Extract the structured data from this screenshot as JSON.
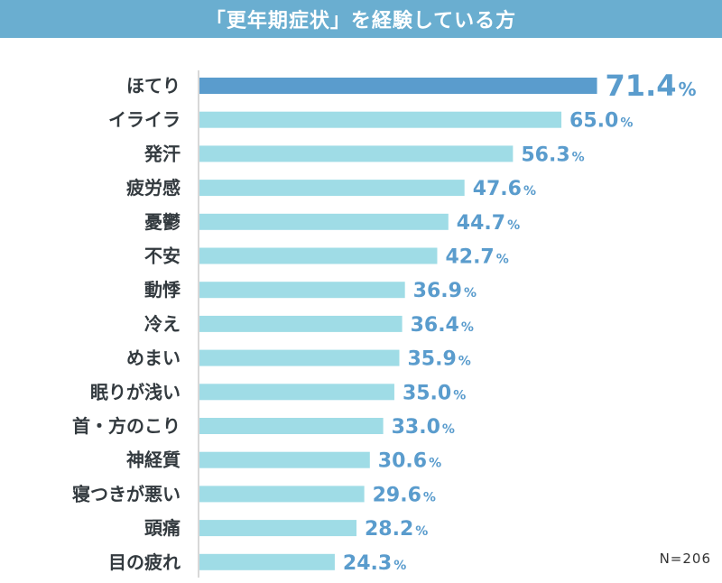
{
  "chart_data": {
    "type": "bar",
    "orientation": "horizontal",
    "title": "「更年期症状」を経験している方",
    "categories": [
      "ほてり",
      "イライラ",
      "発汗",
      "疲労感",
      "憂鬱",
      "不安",
      "動悸",
      "冷え",
      "めまい",
      "眠りが浅い",
      "首・方のこり",
      "神経質",
      "寝つきが悪い",
      "頭痛",
      "目の疲れ"
    ],
    "values": [
      71.4,
      65.0,
      56.3,
      47.6,
      44.7,
      42.7,
      36.9,
      36.4,
      35.9,
      35.0,
      33.0,
      30.6,
      29.6,
      28.2,
      24.3
    ],
    "value_labels": [
      "71.4",
      "65.0",
      "56.3",
      "47.6",
      "44.7",
      "42.7",
      "36.9",
      "36.4",
      "35.9",
      "35.0",
      "33.0",
      "30.6",
      "29.6",
      "28.2",
      "24.3"
    ],
    "unit": "%",
    "xlim": [
      0,
      100
    ],
    "grid": false,
    "colors": {
      "highlight": "#5a9ccd",
      "bar": "#9fdce6",
      "label": "#5a9ccd",
      "axis": "#b0b0b0"
    },
    "note": "N=206"
  }
}
